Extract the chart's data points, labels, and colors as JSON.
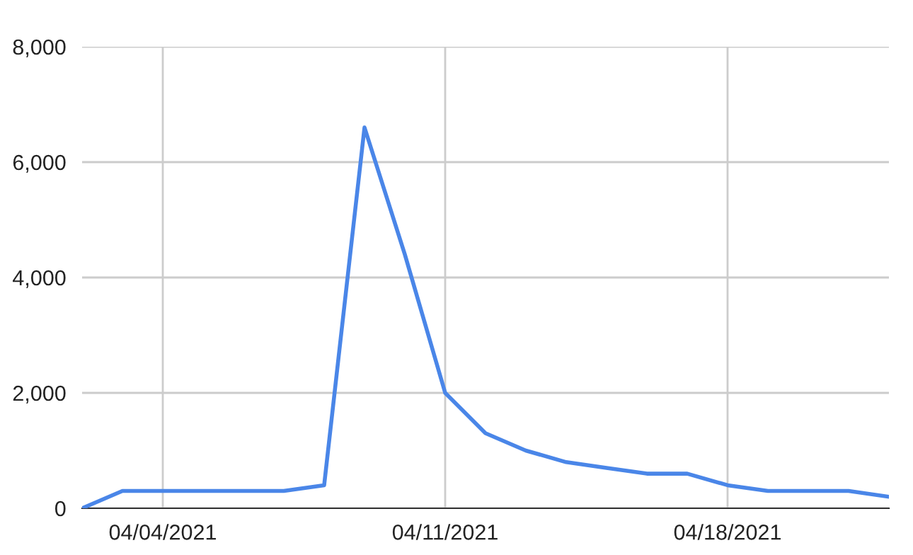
{
  "chart_data": {
    "type": "line",
    "x": [
      "2021-04-02",
      "2021-04-03",
      "2021-04-04",
      "2021-04-05",
      "2021-04-06",
      "2021-04-07",
      "2021-04-08",
      "2021-04-09",
      "2021-04-10",
      "2021-04-11",
      "2021-04-12",
      "2021-04-13",
      "2021-04-14",
      "2021-04-15",
      "2021-04-16",
      "2021-04-17",
      "2021-04-18",
      "2021-04-19",
      "2021-04-20",
      "2021-04-21",
      "2021-04-22"
    ],
    "series": [
      {
        "color": "#4a86e8",
        "values": [
          0,
          300,
          300,
          300,
          300,
          300,
          400,
          6600,
          4400,
          2000,
          1300,
          1000,
          800,
          700,
          600,
          600,
          400,
          300,
          300,
          300,
          200
        ]
      }
    ],
    "xlim": [
      "2021-04-02",
      "2021-04-22"
    ],
    "xticks": [
      {
        "value": "2021-04-04",
        "label": "04/04/2021"
      },
      {
        "value": "2021-04-11",
        "label": "04/11/2021"
      },
      {
        "value": "2021-04-18",
        "label": "04/18/2021"
      }
    ],
    "ylim": [
      0,
      8000
    ],
    "yticks": [
      {
        "value": 0,
        "label": "0"
      },
      {
        "value": 2000,
        "label": "2,000"
      },
      {
        "value": 4000,
        "label": "4,000"
      },
      {
        "value": 6000,
        "label": "6,000"
      },
      {
        "value": 8000,
        "label": "8,000"
      }
    ],
    "grid": true,
    "marker": "none",
    "line_style": "solid"
  }
}
